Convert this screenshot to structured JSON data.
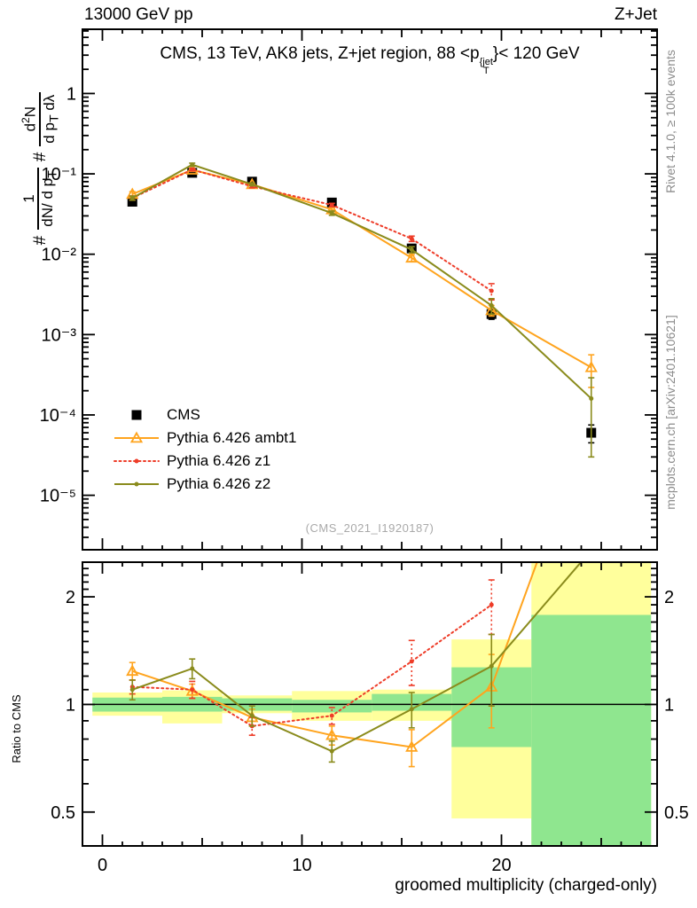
{
  "header": {
    "left": "13000 GeV pp",
    "right": "Z+Jet"
  },
  "title": {
    "part1": "CMS, 13 TeV, AK8 jets, Z+jet region, 88 <p",
    "sup": "{jet",
    "sub": "T",
    "part2": "}< 120 GeV"
  },
  "y_axis_title": {
    "hash1": "#",
    "f1_num": "1",
    "f1_den_a": "dN/ d p",
    "f1_den_sub": "T",
    "hash2": "#",
    "f2_num_a": "d",
    "f2_num_sup": "2",
    "f2_num_b": "N",
    "f2_den_a": "d p",
    "f2_den_sub": "T",
    "f2_den_b": " dλ"
  },
  "ratio_axis_title": "Ratio to CMS",
  "x_axis_title": "groomed multiplicity (charged-only)",
  "watermark": "(CMS_2021_I1920187)",
  "side_notes": {
    "top": "Rivet 4.1.0, ≥ 100k events",
    "bottom": "mcplots.cern.ch [arXiv:2401.10621]"
  },
  "legend": [
    {
      "label": "CMS",
      "marker": "square",
      "color": "#000000",
      "line": "none"
    },
    {
      "label": "Pythia 6.426 ambt1",
      "marker": "triangle",
      "color": "#FFA41E",
      "line": "solid"
    },
    {
      "label": "Pythia 6.426 z1",
      "marker": "dot",
      "color": "#EE3C28",
      "line": "dotted"
    },
    {
      "label": "Pythia 6.426 z2",
      "marker": "dot",
      "color": "#8A8B1C",
      "line": "solid"
    }
  ],
  "colors": {
    "yellow_band": "#FFFF9C",
    "green_band": "#8FE68F",
    "frame": "#000000",
    "gray_text": "#8C8C8C",
    "orange": "#FFA41E",
    "red": "#EE3C28",
    "olive": "#8A8B1C"
  },
  "chart_data": {
    "type": "line",
    "x_label": "groomed multiplicity (charged-only)",
    "x_range": [
      -1,
      27.8
    ],
    "x_tick_labels": [
      {
        "v": 0,
        "label": "0"
      },
      {
        "v": 10,
        "label": "10"
      },
      {
        "v": 20,
        "label": "20"
      }
    ],
    "main_panel": {
      "y_scale": "log",
      "y_range": [
        2.1e-06,
        6.3
      ],
      "y_tick_labels": [
        {
          "v": 1,
          "label": "1"
        },
        {
          "v": 0.1,
          "label": "10⁻¹"
        },
        {
          "v": 0.01,
          "label": "10⁻²"
        },
        {
          "v": 0.001,
          "label": "10⁻³"
        },
        {
          "v": 0.0001,
          "label": "10⁻⁴"
        },
        {
          "v": 1e-05,
          "label": "10⁻⁵"
        }
      ],
      "x": [
        1.5,
        4.5,
        7.5,
        11.5,
        15.5,
        19.5,
        24.5
      ],
      "series": [
        {
          "name": "CMS",
          "marker": "square",
          "color": "#000000",
          "line": "none",
          "y": [
            0.045,
            0.103,
            0.08,
            0.044,
            0.0118,
            0.0018,
            6e-05
          ],
          "yerr": [
            0.002,
            0.004,
            0.003,
            0.002,
            0.0008,
            0.00025,
            1.5e-05
          ]
        },
        {
          "name": "Pythia 6.426 ambt1",
          "marker": "triangle",
          "color": "#FFA41E",
          "line": "solid",
          "y": [
            0.056,
            0.112,
            0.074,
            0.036,
            0.009,
            0.002,
            0.00039
          ],
          "yerr": [
            0.004,
            0.005,
            0.003,
            0.002,
            0.0009,
            0.0003,
            0.00017
          ]
        },
        {
          "name": "Pythia 6.426 z1",
          "marker": "dot",
          "color": "#EE3C28",
          "line": "dotted",
          "y": [
            0.05,
            0.113,
            0.07,
            0.041,
            0.0156,
            0.0035
          ],
          "yerr": [
            0.003,
            0.004,
            0.003,
            0.002,
            0.0012,
            0.0008
          ]
        },
        {
          "name": "Pythia 6.426 z2",
          "marker": "dot",
          "color": "#8A8B1C",
          "line": "solid",
          "y": [
            0.05,
            0.13,
            0.074,
            0.0325,
            0.0114,
            0.0023,
            0.00016
          ],
          "yerr": [
            0.003,
            0.006,
            0.003,
            0.002,
            0.001,
            0.0005,
            0.00013
          ]
        }
      ]
    },
    "ratio_panel": {
      "y_scale": "log",
      "y_range": [
        0.402,
        2.5
      ],
      "ref_value": 1,
      "y_tick_labels": [
        {
          "v": 2,
          "label": "2"
        },
        {
          "v": 1,
          "label": "1"
        },
        {
          "v": 0.5,
          "label": "0.5"
        }
      ],
      "bands": {
        "edges": [
          -0.5,
          3,
          6,
          9.5,
          13.5,
          17.5,
          21.5,
          27.5
        ],
        "yellow": [
          [
            0.93,
            1.08
          ],
          [
            0.885,
            1.095
          ],
          [
            0.945,
            1.06
          ],
          [
            0.9,
            1.09
          ],
          [
            0.9,
            1.1
          ],
          [
            0.48,
            1.52
          ],
          [
            0.402,
            2.5
          ]
        ],
        "green": [
          [
            0.955,
            1.045
          ],
          [
            0.955,
            1.05
          ],
          [
            0.96,
            1.04
          ],
          [
            0.95,
            1.03
          ],
          [
            0.96,
            1.07
          ],
          [
            0.76,
            1.27
          ],
          [
            0.402,
            1.78
          ]
        ]
      },
      "x": [
        1.5,
        4.5,
        7.5,
        11.5,
        15.5,
        19.5,
        24.5
      ],
      "series": [
        {
          "name": "Pythia 6.426 ambt1",
          "marker": "triangle",
          "color": "#FFA41E",
          "line": "solid",
          "y": [
            1.24,
            1.09,
            0.92,
            0.82,
            0.76,
            1.12,
            6.5
          ],
          "yerr": [
            0.07,
            0.05,
            0.05,
            0.05,
            0.09,
            0.26,
            0
          ]
        },
        {
          "name": "Pythia 6.426 z1",
          "marker": "dot",
          "color": "#EE3C28",
          "line": "dotted",
          "y": [
            1.12,
            1.1,
            0.87,
            0.93,
            1.32,
            1.9
          ],
          "yerr": [
            0.05,
            0.06,
            0.05,
            0.05,
            0.19,
            0.33
          ]
        },
        {
          "name": "Pythia 6.426 z2",
          "marker": "dot",
          "color": "#8A8B1C",
          "line": "solid",
          "y": [
            1.1,
            1.26,
            0.93,
            0.74,
            0.97,
            1.28,
            2.7
          ],
          "yerr": [
            0.07,
            0.08,
            0.06,
            0.05,
            0.11,
            0.29,
            0
          ]
        }
      ]
    }
  }
}
